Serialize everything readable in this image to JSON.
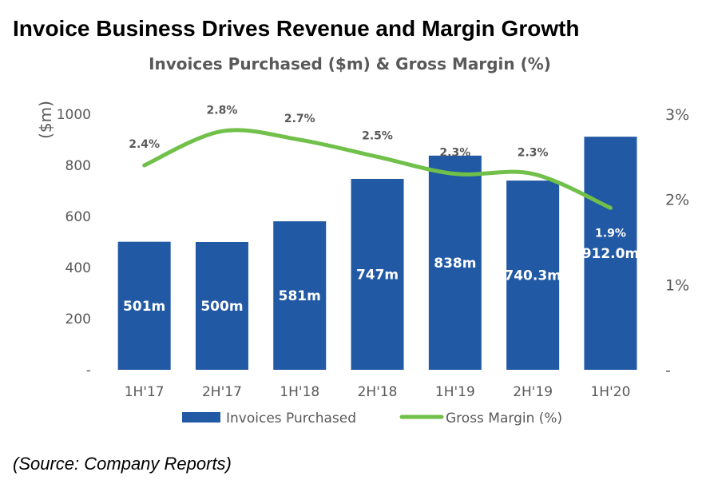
{
  "page": {
    "title": "Invoice Business Drives Revenue and Margin Growth",
    "source": "(Source: Company Reports)"
  },
  "colors": {
    "bar": "#2159A5",
    "line": "#70C04A",
    "text": "#595959",
    "bar_label": "#ffffff"
  },
  "chart_data": {
    "type": "bar",
    "title": "Invoices Purchased ($m) & Gross Margin (%)",
    "xlabel": "",
    "ylabel": "($m)",
    "ylim": [
      0,
      1000
    ],
    "y_ticks": [
      0,
      200,
      400,
      600,
      800,
      1000
    ],
    "y_tick_labels": [
      "-",
      "200",
      "400",
      "600",
      "800",
      "1000"
    ],
    "y2_ticks": [
      0,
      1,
      2,
      3
    ],
    "y2_tick_labels": [
      "-",
      "1%",
      "2%",
      "3%"
    ],
    "y2lim": [
      0,
      3
    ],
    "categories": [
      "1H'17",
      "2H'17",
      "1H'18",
      "2H'18",
      "1H'19",
      "2H'19",
      "1H'20"
    ],
    "series": [
      {
        "name": "Invoices Purchased",
        "type": "bar",
        "axis": "left",
        "values": [
          501,
          500,
          581,
          747,
          838,
          740.3,
          912.0
        ],
        "labels": [
          "501m",
          "500m",
          "581m",
          "747m",
          "838m",
          "740.3m",
          "912.0m"
        ]
      },
      {
        "name": "Gross Margin (%)",
        "type": "line",
        "axis": "right",
        "values": [
          2.4,
          2.8,
          2.7,
          2.5,
          2.3,
          2.3,
          1.9
        ],
        "labels": [
          "2.4%",
          "2.8%",
          "2.7%",
          "2.5%",
          "2.3%",
          "2.3%",
          "1.9%"
        ]
      }
    ],
    "legend": [
      "Invoices Purchased",
      "Gross Margin (%)"
    ],
    "legend_position": "bottom",
    "grid": false
  }
}
